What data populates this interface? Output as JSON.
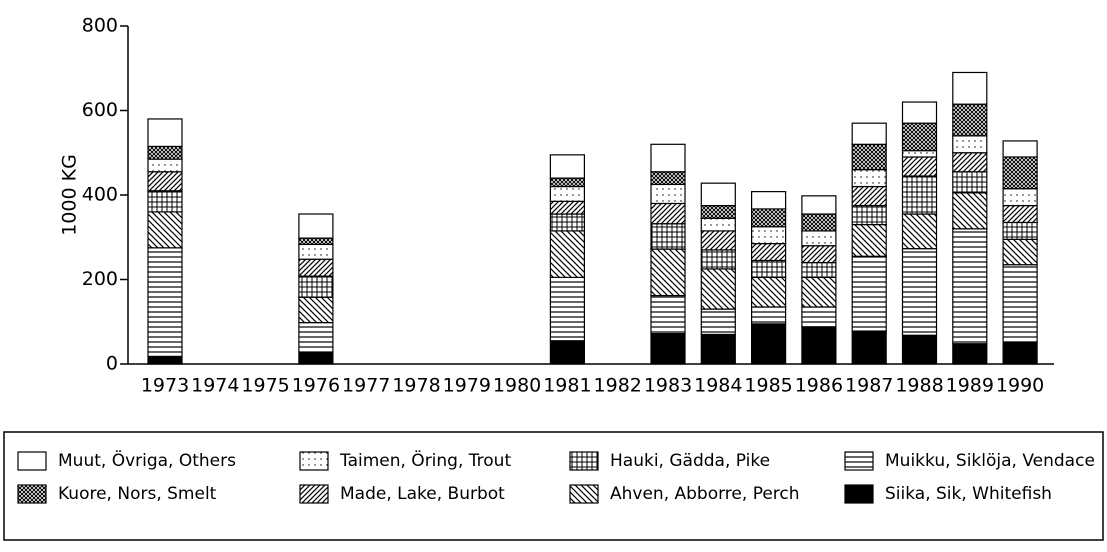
{
  "chart_data": {
    "type": "stacked_bar",
    "y_label": "1000 KG",
    "categories": [
      "1973",
      "1974",
      "1975",
      "1976",
      "1977",
      "1978",
      "1979",
      "1980",
      "1981",
      "1982",
      "1983",
      "1984",
      "1985",
      "1986",
      "1987",
      "1988",
      "1989",
      "1990"
    ],
    "ylim": [
      0,
      800
    ],
    "yticks": [
      0,
      200,
      400,
      600,
      800
    ],
    "series": [
      {
        "name": "Siika, Sik, Whitefish",
        "color": "#000000",
        "pattern": "solid",
        "values": [
          18,
          null,
          null,
          28,
          null,
          null,
          null,
          null,
          55,
          null,
          72,
          70,
          95,
          88,
          78,
          68,
          48,
          52
        ]
      },
      {
        "name": "Muikku, Siklöja, Vendace",
        "color": "#000000",
        "pattern": "hlines",
        "values": [
          257,
          null,
          null,
          70,
          null,
          null,
          null,
          null,
          150,
          null,
          90,
          60,
          40,
          47,
          177,
          205,
          272,
          183
        ]
      },
      {
        "name": "Ahven, Abborre, Perch",
        "color": "#000000",
        "pattern": "bdiag",
        "values": [
          85,
          null,
          null,
          60,
          null,
          null,
          null,
          null,
          110,
          null,
          110,
          95,
          70,
          70,
          75,
          82,
          85,
          60
        ]
      },
      {
        "name": "Hauki, Gädda, Pike",
        "color": "#000000",
        "pattern": "grid",
        "values": [
          50,
          null,
          null,
          50,
          null,
          null,
          null,
          null,
          40,
          null,
          60,
          45,
          40,
          35,
          45,
          90,
          50,
          40
        ]
      },
      {
        "name": "Made, Lake, Burbot",
        "color": "#000000",
        "pattern": "fdiag",
        "values": [
          45,
          null,
          null,
          40,
          null,
          null,
          null,
          null,
          30,
          null,
          48,
          45,
          40,
          40,
          45,
          45,
          45,
          40
        ]
      },
      {
        "name": "Taimen, Öring, Trout",
        "color": "#000000",
        "pattern": "dots",
        "values": [
          30,
          null,
          null,
          35,
          null,
          null,
          null,
          null,
          35,
          null,
          45,
          30,
          40,
          35,
          40,
          15,
          40,
          40
        ]
      },
      {
        "name": "Kuore, Nors, Smelt",
        "color": "#000000",
        "pattern": "crosshatch",
        "values": [
          30,
          null,
          null,
          15,
          null,
          null,
          null,
          null,
          20,
          null,
          30,
          30,
          42,
          40,
          60,
          65,
          75,
          75
        ]
      },
      {
        "name": "Muut, Övriga, Others",
        "color": "#000000",
        "pattern": "none",
        "values": [
          65,
          null,
          null,
          57,
          null,
          null,
          null,
          null,
          55,
          null,
          65,
          53,
          41,
          43,
          50,
          50,
          75,
          38
        ]
      }
    ]
  }
}
